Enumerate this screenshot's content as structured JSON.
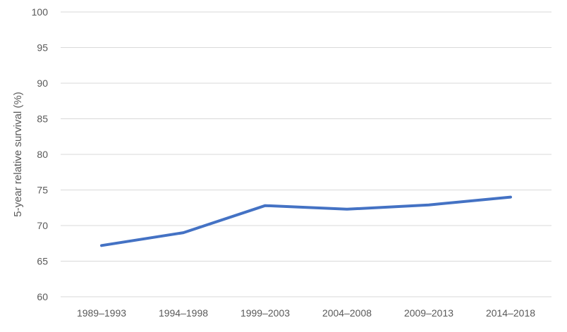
{
  "chart_data": {
    "type": "line",
    "title": "",
    "xlabel": "",
    "ylabel": "5-year relative survival (%)",
    "categories": [
      "1989–1993",
      "1994–1998",
      "1999–2003",
      "2004–2008",
      "2009–2013",
      "2014–2018"
    ],
    "series": [
      {
        "values": [
          67.2,
          69.0,
          72.8,
          72.3,
          72.9,
          74.0
        ],
        "color": "#4472c4"
      }
    ],
    "ylim": [
      60,
      100
    ],
    "yticks": [
      60,
      65,
      70,
      75,
      80,
      85,
      90,
      95,
      100
    ],
    "grid": true,
    "legend": "none"
  }
}
